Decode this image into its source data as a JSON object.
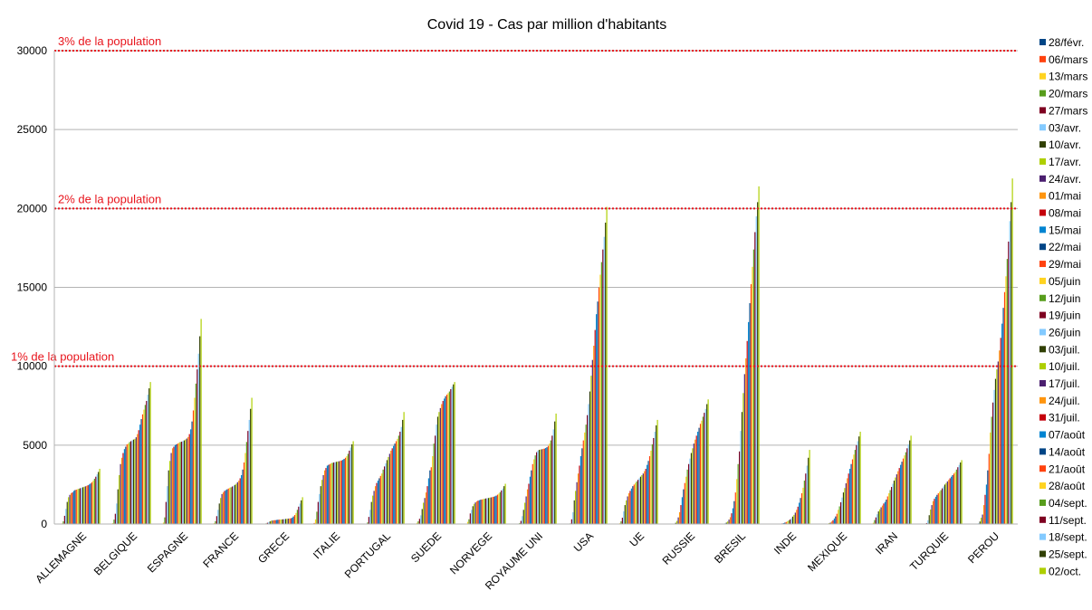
{
  "chart_data": {
    "type": "bar",
    "title": "Covid 19 - Cas par million d'habitants",
    "xlabel": "",
    "ylabel": "",
    "ylim": [
      0,
      30000
    ],
    "yticks": [
      "0",
      "5000",
      "10000",
      "15000",
      "20000",
      "25000",
      "30000"
    ],
    "grid": true,
    "legend_position": "right",
    "categories": [
      "ALLEMAGNE",
      "BELGIQUE",
      "ESPAGNE",
      "FRANCE",
      "GRECE",
      "ITALIE",
      "PORTUGAL",
      "SUEDE",
      "NORVEGE",
      "ROYAUME UNI",
      "USA",
      "UE",
      "RUSSIE",
      "BRESIL",
      "INDE",
      "MEXIQUE",
      "IRAN",
      "TURQUIE",
      "PEROU"
    ],
    "reference_lines": [
      {
        "label": "1% de la population",
        "value": 10000,
        "color": "#e8141c"
      },
      {
        "label": "2% de la population",
        "value": 20000,
        "color": "#e8141c"
      },
      {
        "label": "3% de la population",
        "value": 30000,
        "color": "#e8141c"
      }
    ],
    "series_colors": [
      "#004586",
      "#ff420e",
      "#ffd320",
      "#579d1c",
      "#7e0021",
      "#83caff",
      "#314004",
      "#aecf00",
      "#4b1f6f",
      "#ff950e",
      "#c5000b",
      "#0084d1"
    ],
    "series": [
      {
        "name": "28/févr.",
        "values": [
          0,
          0,
          1,
          0,
          0,
          14,
          0,
          1,
          3,
          0,
          0,
          1,
          0,
          0,
          0,
          0,
          1,
          0,
          0
        ]
      },
      {
        "name": "06/mars",
        "values": [
          8,
          15,
          11,
          6,
          1,
          65,
          1,
          12,
          20,
          2,
          0,
          8,
          0,
          0,
          0,
          0,
          5,
          0,
          0
        ]
      },
      {
        "name": "13/mars",
        "values": [
          40,
          60,
          90,
          55,
          7,
          290,
          12,
          80,
          140,
          10,
          5,
          50,
          0,
          0,
          0,
          0,
          80,
          0,
          1
        ]
      },
      {
        "name": "20/mars",
        "values": [
          170,
          280,
          420,
          180,
          40,
          780,
          100,
          180,
          300,
          60,
          40,
          170,
          2,
          3,
          0,
          1,
          250,
          10,
          7
        ]
      },
      {
        "name": "27/mars",
        "values": [
          520,
          650,
          1400,
          500,
          80,
          1400,
          450,
          330,
          670,
          200,
          300,
          400,
          7,
          15,
          1,
          5,
          420,
          60,
          25
        ]
      },
      {
        "name": "03/avr.",
        "values": [
          960,
          1300,
          2400,
          900,
          110,
          1900,
          900,
          550,
          900,
          500,
          750,
          800,
          30,
          50,
          2,
          12,
          620,
          240,
          50
        ]
      },
      {
        "name": "10/avr.",
        "values": [
          1400,
          2200,
          3400,
          1300,
          170,
          2400,
          1400,
          950,
          1130,
          900,
          1500,
          1200,
          80,
          90,
          4,
          28,
          800,
          560,
          160
        ]
      },
      {
        "name": "17/avr.",
        "values": [
          1700,
          3100,
          4000,
          1650,
          210,
          2800,
          1800,
          1350,
          1280,
          1350,
          2100,
          1500,
          200,
          160,
          9,
          55,
          930,
          920,
          400
        ]
      },
      {
        "name": "24/avr.",
        "values": [
          1850,
          3800,
          4500,
          1900,
          225,
          3100,
          2100,
          1650,
          1370,
          1750,
          2650,
          1750,
          420,
          280,
          15,
          90,
          1060,
          1200,
          600
        ]
      },
      {
        "name": "01/mai",
        "values": [
          1950,
          4200,
          4800,
          2000,
          240,
          3400,
          2400,
          2000,
          1440,
          2200,
          3200,
          1950,
          750,
          430,
          25,
          160,
          1170,
          1450,
          1200
        ]
      },
      {
        "name": "08/mai",
        "values": [
          2000,
          4500,
          4900,
          2100,
          245,
          3550,
          2600,
          2400,
          1480,
          2550,
          3700,
          2100,
          1200,
          680,
          40,
          240,
          1300,
          1600,
          1850
        ]
      },
      {
        "name": "15/mai",
        "values": [
          2100,
          4750,
          5000,
          2150,
          260,
          3700,
          2750,
          2900,
          1510,
          3000,
          4300,
          2250,
          1700,
          1000,
          60,
          350,
          1400,
          1730,
          2500
        ]
      },
      {
        "name": "22/mai",
        "values": [
          2150,
          4900,
          5050,
          2200,
          270,
          3750,
          2900,
          3400,
          1540,
          3400,
          4800,
          2400,
          2200,
          1450,
          90,
          480,
          1550,
          1850,
          3400
        ]
      },
      {
        "name": "29/mai",
        "values": [
          2180,
          5050,
          5100,
          2250,
          280,
          3800,
          3050,
          3600,
          1560,
          3800,
          5300,
          2500,
          2600,
          2000,
          130,
          650,
          1750,
          1950,
          4450
        ]
      },
      {
        "name": "05/juin",
        "values": [
          2210,
          5100,
          5150,
          2300,
          285,
          3850,
          3200,
          4300,
          1580,
          4100,
          5800,
          2600,
          3000,
          2850,
          170,
          900,
          1950,
          2050,
          5800
        ]
      },
      {
        "name": "12/juin",
        "values": [
          2240,
          5200,
          5200,
          2330,
          290,
          3880,
          3450,
          5100,
          1600,
          4350,
          6300,
          2700,
          3450,
          3800,
          230,
          1120,
          2150,
          2150,
          6800
        ]
      },
      {
        "name": "19/juin",
        "values": [
          2270,
          5250,
          5220,
          2380,
          300,
          3900,
          3650,
          5600,
          1620,
          4550,
          6900,
          2800,
          3800,
          4600,
          290,
          1380,
          2350,
          2260,
          7700
        ]
      },
      {
        "name": "26/juin",
        "values": [
          2300,
          5300,
          5260,
          2430,
          310,
          3920,
          3850,
          6300,
          1640,
          4650,
          7600,
          2900,
          4150,
          5900,
          370,
          1680,
          2550,
          2380,
          8500
        ]
      },
      {
        "name": "03/juil.",
        "values": [
          2330,
          5350,
          5300,
          2480,
          320,
          3940,
          4050,
          6800,
          1650,
          4700,
          8400,
          3000,
          4500,
          7100,
          470,
          2000,
          2750,
          2500,
          9200
        ]
      },
      {
        "name": "10/juil.",
        "values": [
          2360,
          5400,
          5360,
          2550,
          330,
          3960,
          4250,
          7100,
          1670,
          4720,
          9400,
          3100,
          4800,
          8300,
          580,
          2280,
          2950,
          2600,
          9800
        ]
      },
      {
        "name": "17/juil.",
        "values": [
          2390,
          5500,
          5420,
          2650,
          340,
          3980,
          4450,
          7350,
          1690,
          4740,
          10400,
          3200,
          5100,
          9500,
          720,
          2580,
          3150,
          2700,
          10300
        ]
      },
      {
        "name": "24/juil.",
        "values": [
          2420,
          5700,
          5520,
          2750,
          350,
          4000,
          4650,
          7600,
          1710,
          4760,
          11300,
          3350,
          5350,
          10500,
          900,
          2900,
          3350,
          2800,
          11000
        ]
      },
      {
        "name": "31/juil.",
        "values": [
          2460,
          5950,
          5700,
          2900,
          365,
          4030,
          4800,
          7800,
          1730,
          4780,
          12300,
          3500,
          5600,
          11600,
          1100,
          3200,
          3550,
          2900,
          11800
        ]
      },
      {
        "name": "07/août",
        "values": [
          2510,
          6300,
          6000,
          3100,
          400,
          4070,
          4950,
          7950,
          1760,
          4820,
          13300,
          3750,
          5850,
          12800,
          1350,
          3500,
          3750,
          3000,
          12700
        ]
      },
      {
        "name": "14/août",
        "values": [
          2570,
          6650,
          6500,
          3450,
          480,
          4130,
          5100,
          8100,
          1800,
          4870,
          14100,
          4000,
          6100,
          14000,
          1650,
          3800,
          3950,
          3100,
          13700
        ]
      },
      {
        "name": "21/août",
        "values": [
          2650,
          6950,
          7200,
          3900,
          570,
          4200,
          5250,
          8200,
          1860,
          4950,
          15000,
          4300,
          6350,
          15200,
          1950,
          4100,
          4150,
          3200,
          14700
        ]
      },
      {
        "name": "28/août",
        "values": [
          2750,
          7250,
          8000,
          4500,
          700,
          4300,
          5400,
          8300,
          1930,
          5100,
          15800,
          4650,
          6550,
          16300,
          2300,
          4400,
          4350,
          3300,
          15700
        ]
      },
      {
        "name": "04/sept.",
        "values": [
          2870,
          7550,
          8900,
          5200,
          900,
          4450,
          5600,
          8400,
          2020,
          5300,
          16600,
          5050,
          6800,
          17400,
          2750,
          4700,
          4550,
          3450,
          16800
        ]
      },
      {
        "name": "11/sept.",
        "values": [
          3000,
          7800,
          9800,
          5900,
          1100,
          4650,
          5850,
          8550,
          2130,
          5600,
          17400,
          5450,
          7050,
          18500,
          3200,
          5000,
          4800,
          3600,
          17900
        ]
      },
      {
        "name": "18/sept.",
        "values": [
          3150,
          8200,
          10800,
          6600,
          1300,
          4850,
          6150,
          8700,
          2250,
          6000,
          18200,
          5850,
          7300,
          19500,
          3700,
          5250,
          5050,
          3750,
          19200
        ]
      },
      {
        "name": "25/sept.",
        "values": [
          3300,
          8600,
          11900,
          7300,
          1500,
          5050,
          6600,
          8850,
          2400,
          6500,
          19100,
          6250,
          7600,
          20400,
          4200,
          5550,
          5300,
          3900,
          20400
        ]
      },
      {
        "name": "02/oct.",
        "values": [
          3500,
          9000,
          13000,
          8000,
          1700,
          5250,
          7100,
          9000,
          2550,
          7000,
          20100,
          6600,
          7900,
          21400,
          4700,
          5850,
          5600,
          4050,
          21900
        ]
      }
    ]
  }
}
